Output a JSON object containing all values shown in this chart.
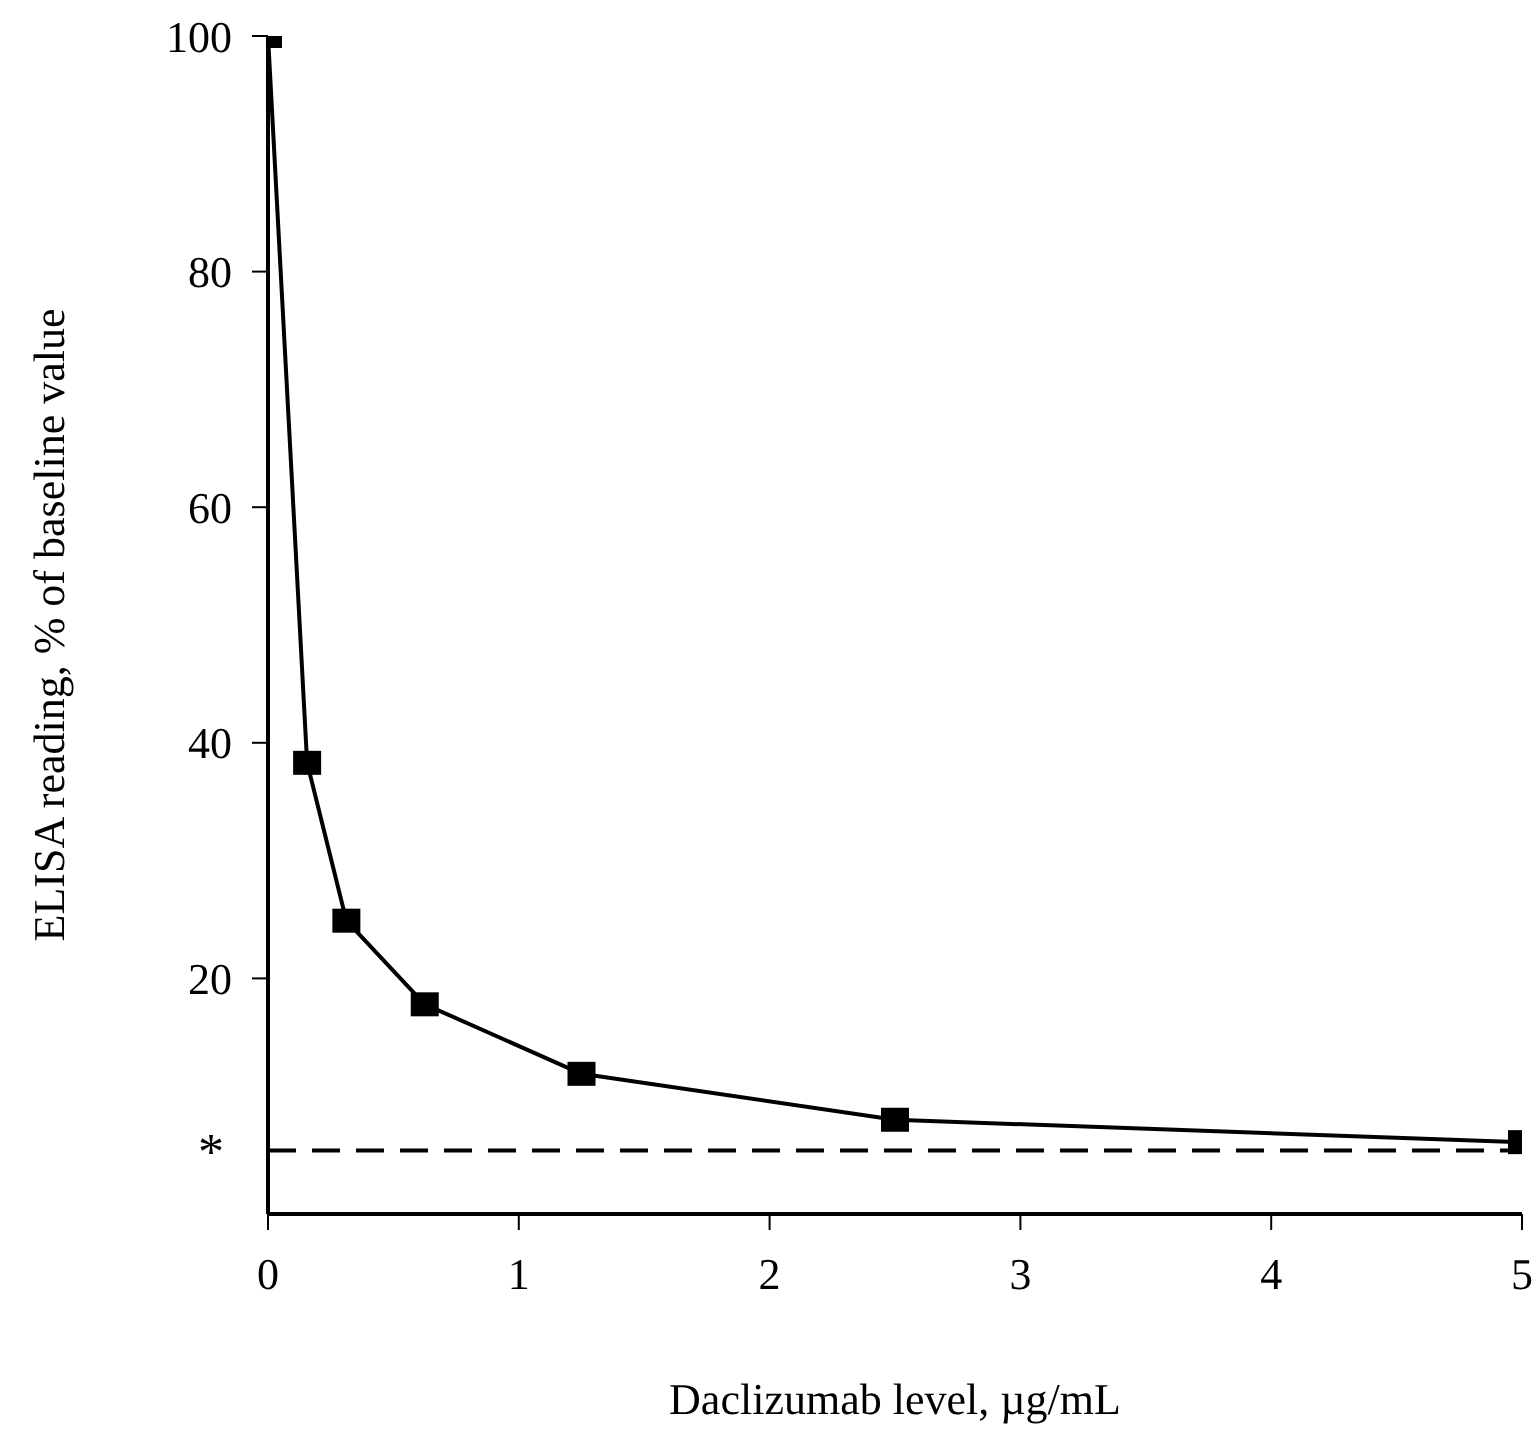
{
  "chart_data": {
    "type": "line",
    "xlabel": "Daclizumab level, µg/mL",
    "ylabel": "ELISA reading, % of baseline value",
    "x": [
      0,
      0.156,
      0.3125,
      0.625,
      1.25,
      2.5,
      5
    ],
    "series": [
      {
        "color": "#000000",
        "values": [
          100,
          38.3,
          24.9,
          17.8,
          11.9,
          8.0,
          6.1
        ]
      }
    ],
    "xlim": [
      0,
      5
    ],
    "xticks": [
      0,
      1,
      2,
      3,
      4,
      5
    ],
    "ylim": [
      0,
      100
    ],
    "yticks": [
      20,
      40,
      60,
      80,
      100
    ],
    "ref_lines": [
      {
        "axis": "y",
        "value": 5.4,
        "label": "*",
        "color": "#000000",
        "line_style": "dashed"
      }
    ],
    "marker": "square",
    "line_style": "solid",
    "grid": false
  }
}
